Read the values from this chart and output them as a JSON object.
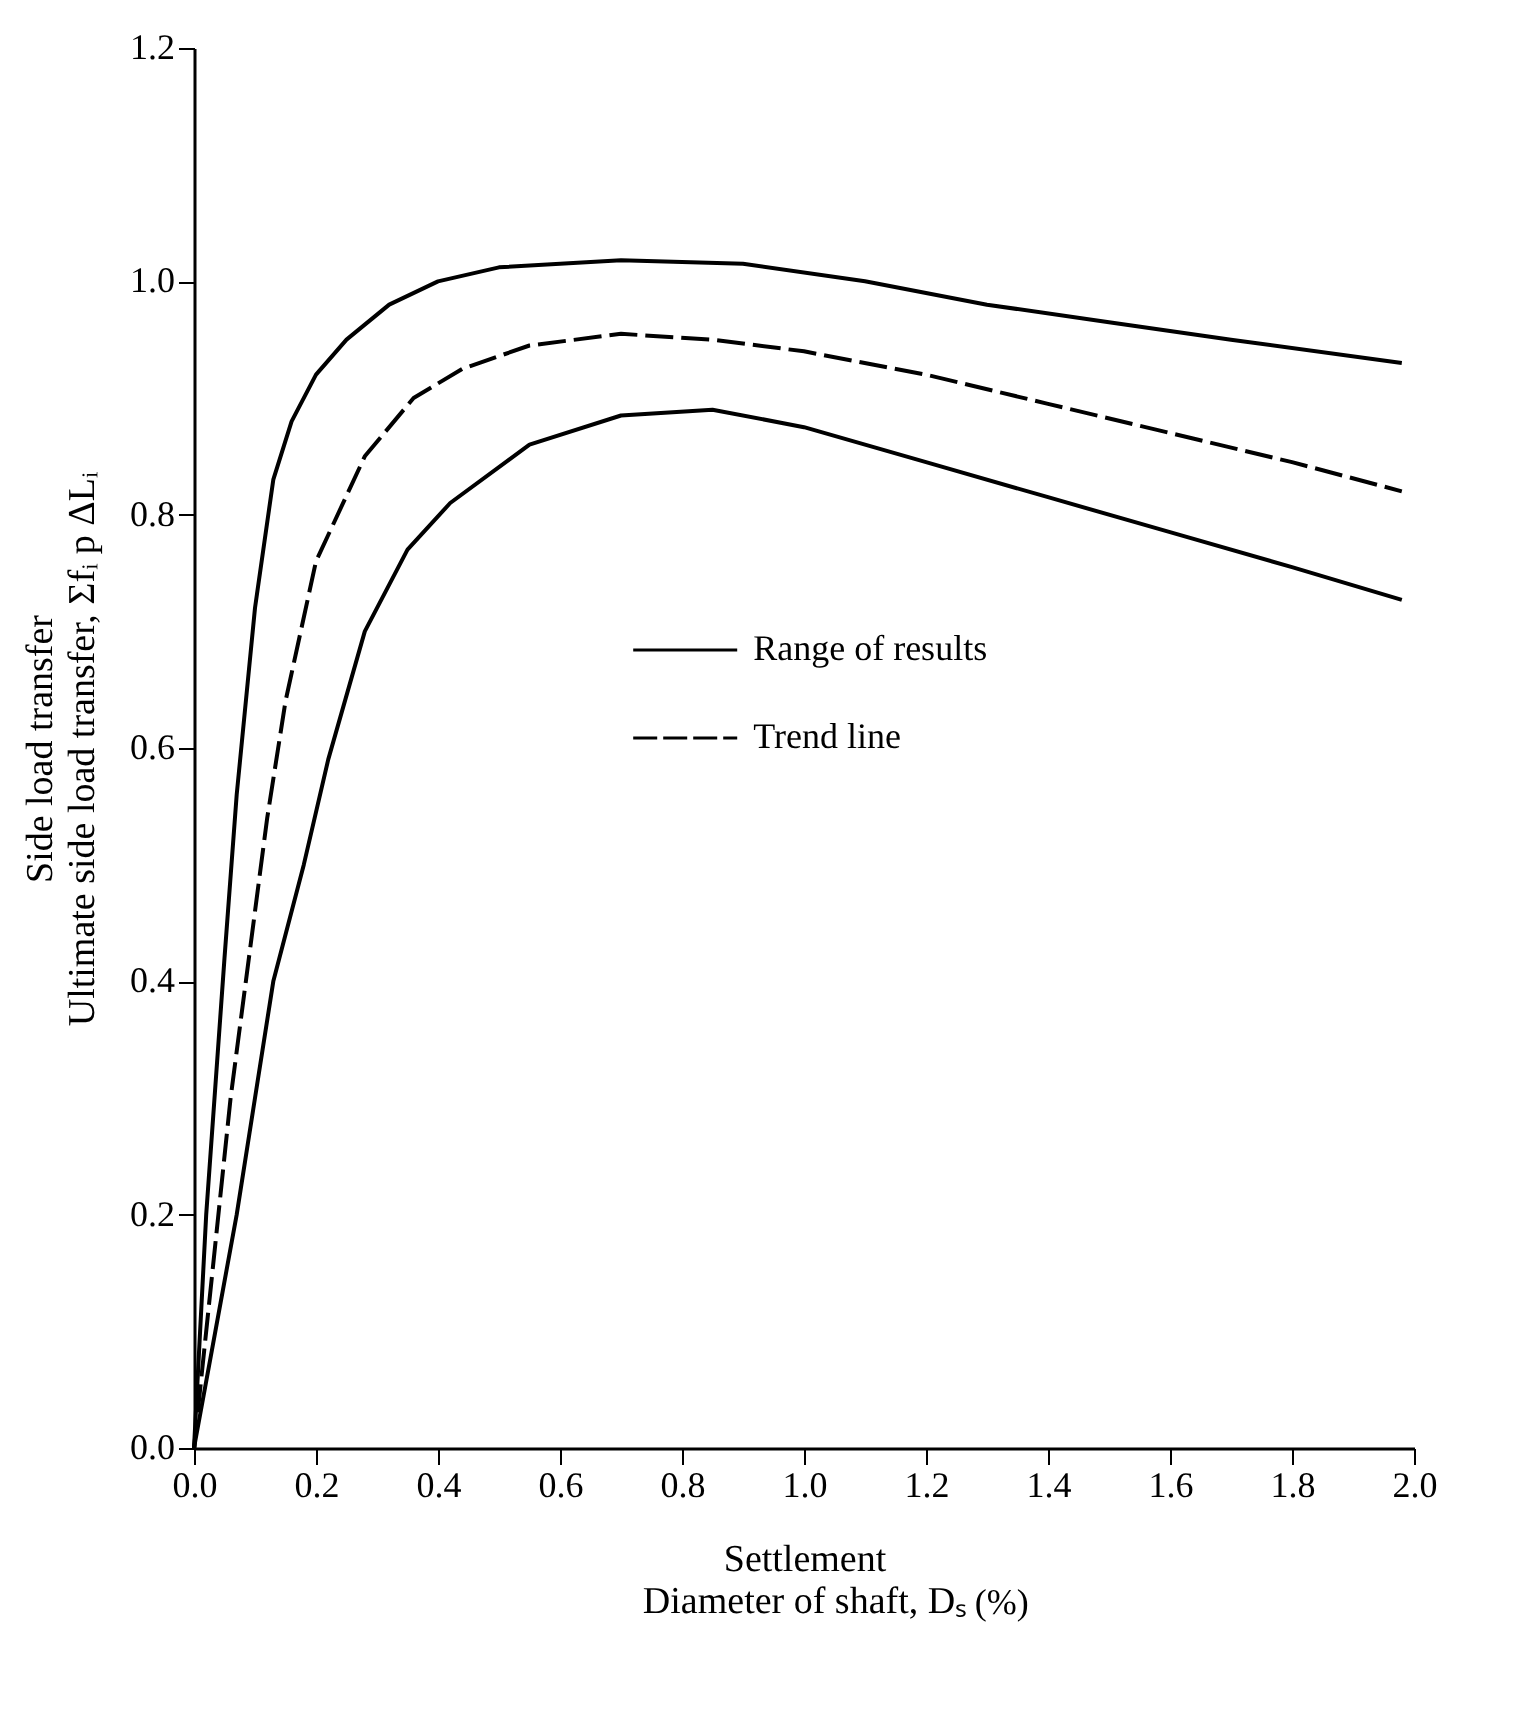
{
  "chart_data": {
    "type": "line",
    "xlabel": [
      "Settlement",
      "Diameter of shaft, Dₛ"
    ],
    "ylabel": [
      "Side load transfer",
      "Ultimate side load transfer, Σfᵢ p ΔLᵢ"
    ],
    "annotations": [
      "(%)"
    ],
    "xlim": [
      0,
      2.0
    ],
    "xticks": [
      {
        "value": 0,
        "label": "0.0"
      },
      0.2,
      0.4,
      0.6,
      0.8,
      {
        "value": 1,
        "label": "1.0"
      },
      1.2,
      1.4,
      1.6,
      1.8,
      {
        "value": 2,
        "label": "2.0"
      }
    ],
    "ylim": [
      0,
      1.2
    ],
    "yticks": [
      {
        "value": 0,
        "label": "0.0"
      },
      0.2,
      0.4,
      0.6,
      0.8,
      {
        "value": 1,
        "label": "1.0"
      },
      1.2
    ],
    "grid": false,
    "legend": "center",
    "marker": "none",
    "series": [
      {
        "name": "Range of results",
        "color": "#000000",
        "line_style": "solid",
        "x": [
          0,
          0.02,
          0.05,
          0.07,
          0.1,
          0.13,
          0.16,
          0.2,
          0.25,
          0.32,
          0.4,
          0.5,
          0.7,
          0.9,
          1.1,
          1.3,
          1.5,
          1.7,
          1.98
        ],
        "values": [
          0,
          0.2,
          0.42,
          0.56,
          0.72,
          0.83,
          0.88,
          0.92,
          0.95,
          0.98,
          1.0,
          1.012,
          1.018,
          1.015,
          1.0,
          0.98,
          0.965,
          0.95,
          0.93
        ]
      },
      {
        "name": "Trend line",
        "color": "#000000",
        "line_style": "dashed",
        "x": [
          0,
          0.03,
          0.06,
          0.09,
          0.12,
          0.15,
          0.2,
          0.28,
          0.36,
          0.44,
          0.55,
          0.7,
          0.85,
          1.0,
          1.2,
          1.4,
          1.6,
          1.8,
          1.98
        ],
        "values": [
          0,
          0.15,
          0.3,
          0.42,
          0.54,
          0.64,
          0.76,
          0.85,
          0.9,
          0.925,
          0.945,
          0.955,
          0.95,
          0.94,
          0.92,
          0.895,
          0.87,
          0.845,
          0.82
        ]
      },
      {
        "color": "#000000",
        "line_style": "solid",
        "x": [
          0,
          0.035,
          0.07,
          0.1,
          0.13,
          0.18,
          0.22,
          0.28,
          0.35,
          0.42,
          0.55,
          0.7,
          0.85,
          1.0,
          1.2,
          1.4,
          1.6,
          1.8,
          1.98
        ],
        "values": [
          0,
          0.1,
          0.2,
          0.3,
          0.4,
          0.5,
          0.59,
          0.7,
          0.77,
          0.81,
          0.86,
          0.885,
          0.89,
          0.875,
          0.845,
          0.815,
          0.785,
          0.755,
          0.727
        ]
      }
    ]
  }
}
